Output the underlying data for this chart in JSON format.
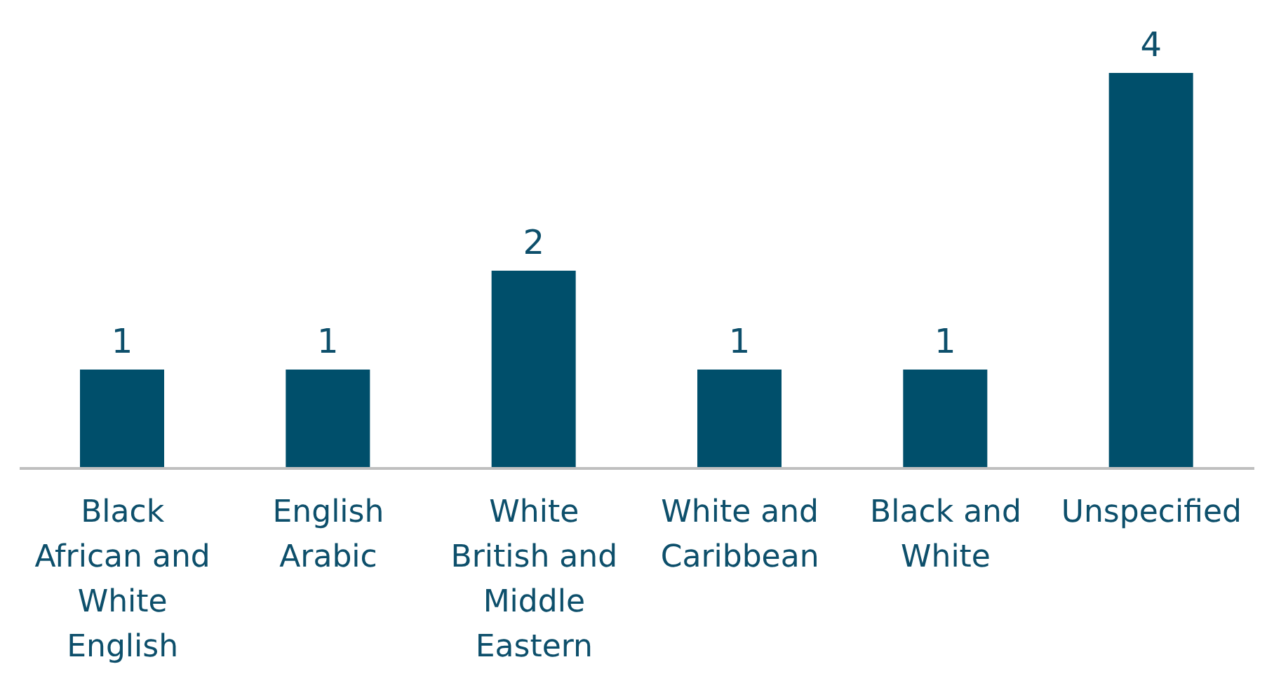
{
  "chart_data": {
    "type": "bar",
    "categories": [
      "Black African and White English",
      "English Arabic",
      "White British and Middle Eastern",
      "White and Caribbean",
      "Black and White",
      "Unspecified"
    ],
    "values": [
      1,
      1,
      2,
      1,
      1,
      4
    ],
    "color": "#004f6b",
    "data_labels": true,
    "grid": false,
    "legend": false
  }
}
